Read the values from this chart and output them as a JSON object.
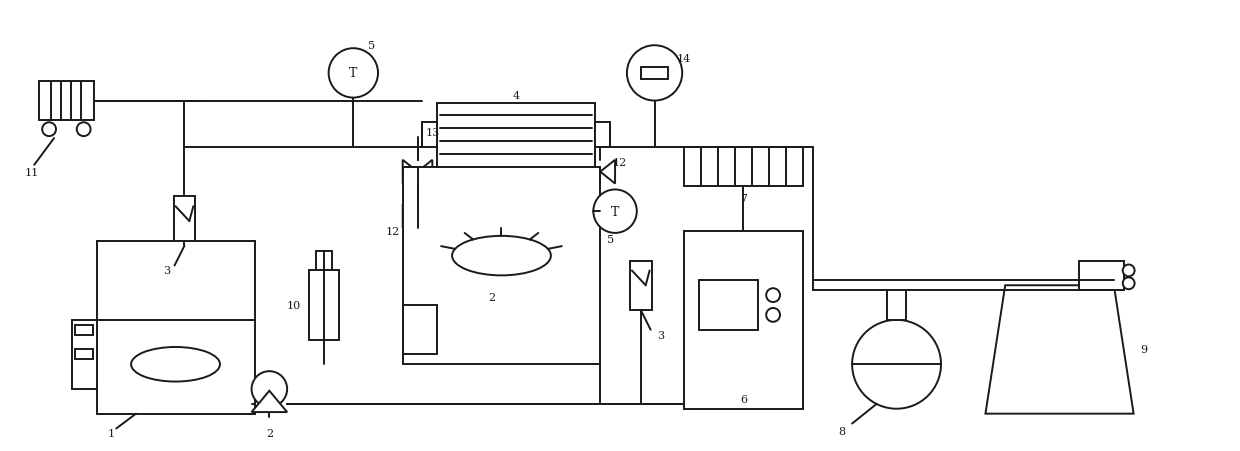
{
  "bg_color": "#ffffff",
  "line_color": "#1a1a1a",
  "line_width": 1.4,
  "fig_width": 12.4,
  "fig_height": 4.52
}
